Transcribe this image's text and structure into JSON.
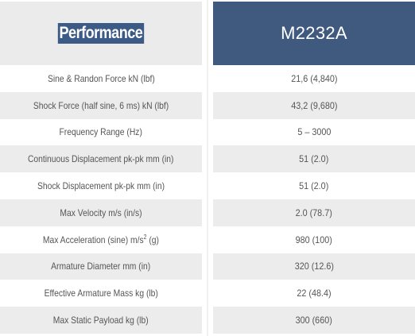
{
  "header": {
    "left_label": "Performance",
    "right_label": "M2232A"
  },
  "rows": [
    {
      "label": "Sine & Randon Force kN (lbf)",
      "value": "21,6 (4,840)"
    },
    {
      "label": "Shock Force (half sine, 6 ms) kN (lbf)",
      "value": "43,2 (9,680)"
    },
    {
      "label": "Frequency Range (Hz)",
      "value": "5 – 3000"
    },
    {
      "label": "Continuous Displacement pk-pk mm (in)",
      "value": "51 (2.0)"
    },
    {
      "label": "Shock Displacement pk-pk mm (in)",
      "value": "51 (2.0)"
    },
    {
      "label": "Max Velocity m/s (in/s)",
      "value": "2.0 (78.7)"
    },
    {
      "label_pre": "Max Acceleration (sine) m/s",
      "label_sup": "2",
      "label_post": " (g)",
      "value": "980 (100)"
    },
    {
      "label": "Armature Diameter mm (in)",
      "value": "320 (12.6)"
    },
    {
      "label": "Effective Armature Mass kg (lb)",
      "value": "22 (48.4)"
    },
    {
      "label": "Max Static Payload kg (lb)",
      "value": "300 (660)"
    }
  ],
  "colors": {
    "header_blue": "#40597e",
    "row_alt": "#ececec",
    "text": "#555555"
  }
}
